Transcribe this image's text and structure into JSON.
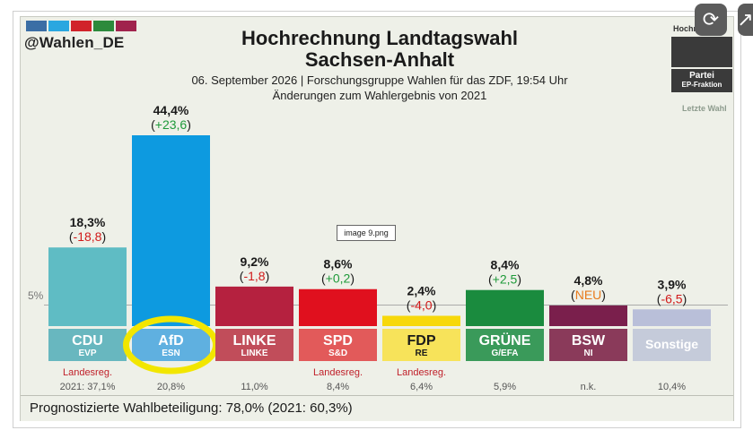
{
  "header": {
    "handle": "@Wahlen_DE",
    "title_line1": "Hochrechnung Landtagswahl",
    "title_line2": "Sachsen-Anhalt",
    "subtitle_line1": "06. September 2026 | Forschungsgruppe Wahlen für das ZDF, 19:54 Uhr",
    "subtitle_line2": "Änderungen zum Wahlergebnis von 2021",
    "logo_colors": [
      "#3b6ea5",
      "#2aa7e0",
      "#d1232a",
      "#2c8a3c",
      "#a0234d"
    ]
  },
  "side_legend": {
    "top_caption": "Hochr",
    "box_label_1": "Partei",
    "box_label_2": "EP-Fraktion",
    "last_vote_label": "Letzte Wahl"
  },
  "chart_data": {
    "type": "bar",
    "categories": [
      "CDU",
      "AfD",
      "LINKE",
      "SPD",
      "FDP",
      "GRÜNE",
      "BSW",
      "Sonstige"
    ],
    "ep_groups": [
      "EVP",
      "ESN",
      "LINKE",
      "S&D",
      "RE",
      "G/EFA",
      "NI",
      ""
    ],
    "values": [
      18.3,
      44.4,
      9.2,
      8.6,
      2.4,
      8.4,
      4.8,
      3.9
    ],
    "value_labels": [
      "18,3%",
      "44,4%",
      "9,2%",
      "8,6%",
      "2,4%",
      "8,4%",
      "4,8%",
      "3,9%"
    ],
    "change_labels": [
      "-18,8",
      "+23,6",
      "-1,8",
      "+0,2",
      "-4,0",
      "+2,5",
      "NEU",
      "-6,5"
    ],
    "change_types": [
      "neg",
      "pos",
      "neg",
      "pos",
      "neg",
      "pos",
      "new",
      "neg"
    ],
    "colors": [
      "#5fbcc4",
      "#0d9ae0",
      "#b5213f",
      "#e0101e",
      "#f7d80a",
      "#1a8b3e",
      "#7a1f4c",
      "#b9bfd9"
    ],
    "label_colors": [
      "#68b7bf",
      "#5fb0e0",
      "#c14d5a",
      "#e25a5a",
      "#f7e35a",
      "#3a9a5a",
      "#8a3a5a",
      "#c5cbda"
    ],
    "government_labels": [
      "Landesreg.",
      "",
      "",
      "Landesreg.",
      "Landesreg.",
      "",
      "",
      ""
    ],
    "last_results": [
      "2021: 37,1%",
      "20,8%",
      "11,0%",
      "8,4%",
      "6,4%",
      "5,9%",
      "n.k.",
      "10,4%"
    ],
    "threshold_label": "5%",
    "threshold_value": 5,
    "ylim": [
      0,
      44.4
    ],
    "highlighted_category": "AfD",
    "title": "Hochrechnung Landtagswahl Sachsen-Anhalt"
  },
  "footer": {
    "turnout": "Prognostizierte Wahlbeteiligung: 78,0% (2021: 60,3%)"
  },
  "tooltip": "image 9.png"
}
